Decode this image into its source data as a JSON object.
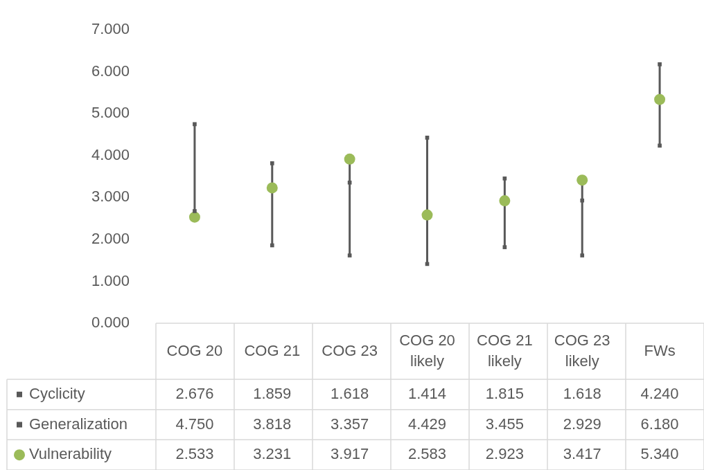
{
  "chart_data": {
    "type": "scatter",
    "categories": [
      "COG 20",
      "COG 21",
      "COG 23",
      "COG 20 likely",
      "COG 21 likely",
      "COG 23 likely",
      "FWs"
    ],
    "series": [
      {
        "name": "Cyclicity",
        "color": "#595959",
        "marker": "square",
        "values": [
          2.676,
          1.859,
          1.618,
          1.414,
          1.815,
          1.618,
          4.24
        ],
        "value_labels": [
          "2.676",
          "1.859",
          "1.618",
          "1.414",
          "1.815",
          "1.618",
          "4.240"
        ]
      },
      {
        "name": "Generalization",
        "color": "#595959",
        "marker": "square",
        "values": [
          4.75,
          3.818,
          3.357,
          4.429,
          3.455,
          2.929,
          6.18
        ],
        "value_labels": [
          "4.750",
          "3.818",
          "3.357",
          "4.429",
          "3.455",
          "2.929",
          "6.180"
        ]
      },
      {
        "name": "Vulnerability",
        "color": "#9bbb59",
        "marker": "circle",
        "values": [
          2.533,
          3.231,
          3.917,
          2.583,
          2.923,
          3.417,
          5.34
        ],
        "value_labels": [
          "2.533",
          "3.231",
          "3.917",
          "2.583",
          "2.923",
          "3.417",
          "5.340"
        ]
      }
    ],
    "ylim": [
      0,
      7
    ],
    "yticks": [
      {
        "value": 0,
        "label": "0.000"
      },
      {
        "value": 1,
        "label": "1.000"
      },
      {
        "value": 2,
        "label": "2.000"
      },
      {
        "value": 3,
        "label": "3.000"
      },
      {
        "value": 4,
        "label": "4.000"
      },
      {
        "value": 5,
        "label": "5.000"
      },
      {
        "value": 6,
        "label": "6.000"
      },
      {
        "value": 7,
        "label": "7.000"
      }
    ],
    "grid": false,
    "legend": "bottom left"
  }
}
